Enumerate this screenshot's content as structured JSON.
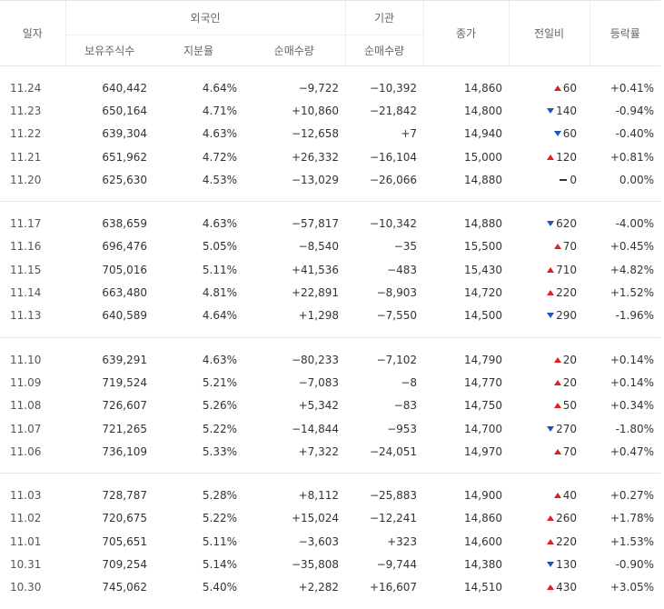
{
  "headers": {
    "date": "일자",
    "foreign": "외국인",
    "institution": "기관",
    "holding_shares": "보유주식수",
    "holding_ratio": "지분율",
    "foreign_net": "순매수량",
    "inst_net": "순매수량",
    "close": "종가",
    "change": "전일비",
    "rate": "등락률"
  },
  "groups": [
    [
      {
        "date": "11.24",
        "shares": "640,442",
        "ratio": "4.64%",
        "fnet": "−9,722",
        "inet": "−10,392",
        "close": "14,860",
        "dir": "up",
        "chg": "60",
        "rate": "+0.41%"
      },
      {
        "date": "11.23",
        "shares": "650,164",
        "ratio": "4.71%",
        "fnet": "+10,860",
        "inet": "−21,842",
        "close": "14,800",
        "dir": "down",
        "chg": "140",
        "rate": "-0.94%"
      },
      {
        "date": "11.22",
        "shares": "639,304",
        "ratio": "4.63%",
        "fnet": "−12,658",
        "inet": "+7",
        "close": "14,940",
        "dir": "down",
        "chg": "60",
        "rate": "-0.40%"
      },
      {
        "date": "11.21",
        "shares": "651,962",
        "ratio": "4.72%",
        "fnet": "+26,332",
        "inet": "−16,104",
        "close": "15,000",
        "dir": "up",
        "chg": "120",
        "rate": "+0.81%"
      },
      {
        "date": "11.20",
        "shares": "625,630",
        "ratio": "4.53%",
        "fnet": "−13,029",
        "inet": "−26,066",
        "close": "14,880",
        "dir": "flat",
        "chg": "0",
        "rate": "0.00%"
      }
    ],
    [
      {
        "date": "11.17",
        "shares": "638,659",
        "ratio": "4.63%",
        "fnet": "−57,817",
        "inet": "−10,342",
        "close": "14,880",
        "dir": "down",
        "chg": "620",
        "rate": "-4.00%"
      },
      {
        "date": "11.16",
        "shares": "696,476",
        "ratio": "5.05%",
        "fnet": "−8,540",
        "inet": "−35",
        "close": "15,500",
        "dir": "up",
        "chg": "70",
        "rate": "+0.45%"
      },
      {
        "date": "11.15",
        "shares": "705,016",
        "ratio": "5.11%",
        "fnet": "+41,536",
        "inet": "−483",
        "close": "15,430",
        "dir": "up",
        "chg": "710",
        "rate": "+4.82%"
      },
      {
        "date": "11.14",
        "shares": "663,480",
        "ratio": "4.81%",
        "fnet": "+22,891",
        "inet": "−8,903",
        "close": "14,720",
        "dir": "up",
        "chg": "220",
        "rate": "+1.52%"
      },
      {
        "date": "11.13",
        "shares": "640,589",
        "ratio": "4.64%",
        "fnet": "+1,298",
        "inet": "−7,550",
        "close": "14,500",
        "dir": "down",
        "chg": "290",
        "rate": "-1.96%"
      }
    ],
    [
      {
        "date": "11.10",
        "shares": "639,291",
        "ratio": "4.63%",
        "fnet": "−80,233",
        "inet": "−7,102",
        "close": "14,790",
        "dir": "up",
        "chg": "20",
        "rate": "+0.14%"
      },
      {
        "date": "11.09",
        "shares": "719,524",
        "ratio": "5.21%",
        "fnet": "−7,083",
        "inet": "−8",
        "close": "14,770",
        "dir": "up",
        "chg": "20",
        "rate": "+0.14%"
      },
      {
        "date": "11.08",
        "shares": "726,607",
        "ratio": "5.26%",
        "fnet": "+5,342",
        "inet": "−83",
        "close": "14,750",
        "dir": "up",
        "chg": "50",
        "rate": "+0.34%"
      },
      {
        "date": "11.07",
        "shares": "721,265",
        "ratio": "5.22%",
        "fnet": "−14,844",
        "inet": "−953",
        "close": "14,700",
        "dir": "down",
        "chg": "270",
        "rate": "-1.80%"
      },
      {
        "date": "11.06",
        "shares": "736,109",
        "ratio": "5.33%",
        "fnet": "+7,322",
        "inet": "−24,051",
        "close": "14,970",
        "dir": "up",
        "chg": "70",
        "rate": "+0.47%"
      }
    ],
    [
      {
        "date": "11.03",
        "shares": "728,787",
        "ratio": "5.28%",
        "fnet": "+8,112",
        "inet": "−25,883",
        "close": "14,900",
        "dir": "up",
        "chg": "40",
        "rate": "+0.27%"
      },
      {
        "date": "11.02",
        "shares": "720,675",
        "ratio": "5.22%",
        "fnet": "+15,024",
        "inet": "−12,241",
        "close": "14,860",
        "dir": "up",
        "chg": "260",
        "rate": "+1.78%"
      },
      {
        "date": "11.01",
        "shares": "705,651",
        "ratio": "5.11%",
        "fnet": "−3,603",
        "inet": "+323",
        "close": "14,600",
        "dir": "up",
        "chg": "220",
        "rate": "+1.53%"
      },
      {
        "date": "10.31",
        "shares": "709,254",
        "ratio": "5.14%",
        "fnet": "−35,808",
        "inet": "−9,744",
        "close": "14,380",
        "dir": "down",
        "chg": "130",
        "rate": "-0.90%"
      },
      {
        "date": "10.30",
        "shares": "745,062",
        "ratio": "5.40%",
        "fnet": "+2,282",
        "inet": "+16,607",
        "close": "14,510",
        "dir": "up",
        "chg": "430",
        "rate": "+3.05%"
      }
    ]
  ],
  "colors": {
    "up": "#e02020",
    "down": "#1b55b5",
    "neutral": "#333333"
  }
}
